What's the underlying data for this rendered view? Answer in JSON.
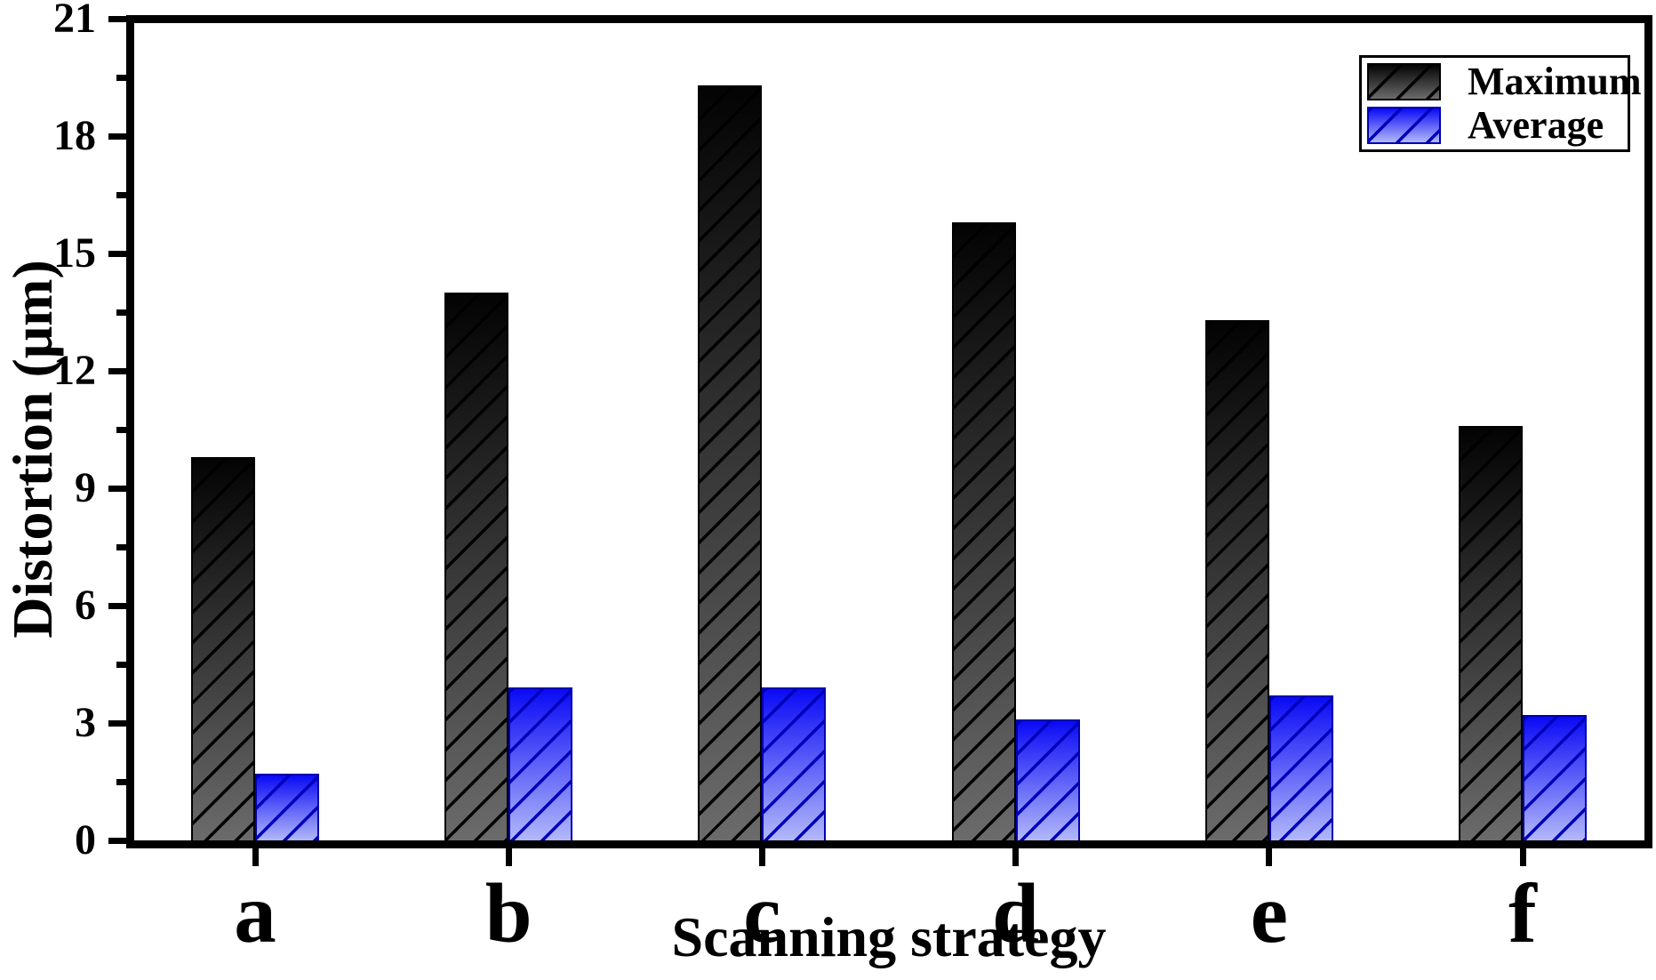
{
  "figure": {
    "background": "#ffffff",
    "axis_color": "#000000",
    "text_color": "#000000"
  },
  "chart_data": {
    "type": "bar",
    "title": "",
    "xlabel": "Scanning strategy",
    "ylabel": "Distortion (μm)",
    "categories": [
      "a",
      "b",
      "c",
      "d",
      "e",
      "f"
    ],
    "series": [
      {
        "name": "Maximum",
        "values": [
          9.8,
          14.0,
          19.3,
          15.8,
          13.3,
          10.6
        ],
        "color_top": "#030303",
        "color_bottom": "#6b6b6b",
        "hatch_color": "#000000",
        "border_color": "#000000"
      },
      {
        "name": "Average",
        "values": [
          1.7,
          3.9,
          3.9,
          3.1,
          3.7,
          3.2
        ],
        "color_top": "#0a0af5",
        "color_bottom": "#b2b8fa",
        "hatch_color": "#0000bb",
        "border_color": "#0000b0"
      }
    ],
    "ylim": [
      0,
      21
    ],
    "yticks": [
      0,
      3,
      6,
      9,
      12,
      15,
      18,
      21
    ],
    "minor_ytick_interval": 1.5,
    "grid": false,
    "legend_position": "top-right",
    "hatch_pattern": "diagonal"
  }
}
